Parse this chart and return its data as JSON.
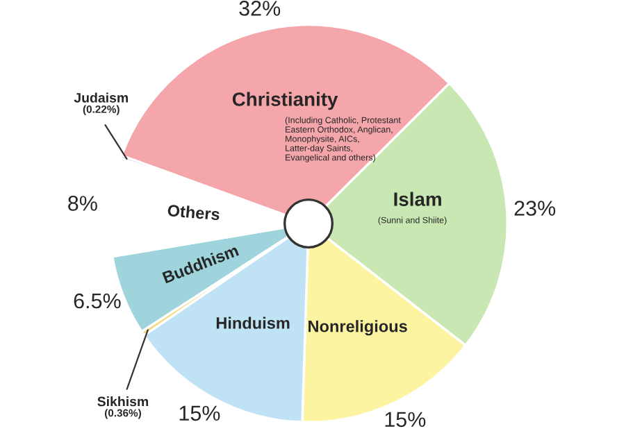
{
  "chart_data": {
    "type": "pie",
    "categories": [
      "Christianity",
      "Islam",
      "Nonreligious",
      "Hinduism",
      "Sikhism",
      "Buddhism",
      "Others",
      "Judaism"
    ],
    "values": [
      32,
      23,
      15,
      15,
      0.36,
      6.5,
      8,
      0.22
    ],
    "colors": [
      "#f4a6ab",
      "#c9e7b3",
      "#fdf4a2",
      "#bfe2f4",
      "#f5d77c",
      "#9fd4dc",
      "#ffffff",
      "#b9a8da"
    ],
    "value_labels": [
      "32%",
      "23%",
      "15%",
      "15%",
      "(0.36%)",
      "6.5%",
      "8%",
      "(0.22%)"
    ],
    "annotations": [
      {
        "text": "(Including Catholic, Protestant\nEastern Orthodox, Anglican,\nMonophysite, AICs,\nLatter-day Saints,\nEvangelical and others)",
        "x": "Christianity"
      },
      {
        "text": "(Sunni and Shiite)",
        "x": "Islam"
      }
    ],
    "legend": false
  }
}
